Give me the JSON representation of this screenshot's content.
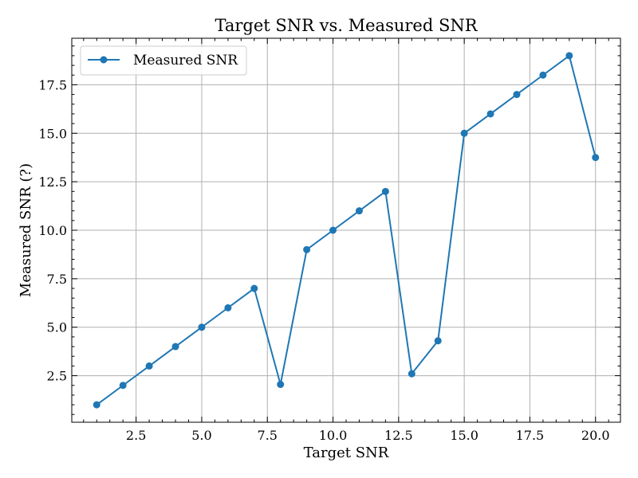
{
  "chart_data": {
    "type": "line",
    "title": "Target SNR vs. Measured SNR",
    "xlabel": "Target SNR",
    "ylabel": "Measured SNR (?)",
    "xlim": [
      0.05,
      20.95
    ],
    "ylim": [
      0.1,
      19.9
    ],
    "xticks": [
      2.5,
      5.0,
      7.5,
      10.0,
      12.5,
      15.0,
      17.5,
      20.0
    ],
    "xtick_labels": [
      "2.5",
      "5.0",
      "7.5",
      "10.0",
      "12.5",
      "15.0",
      "17.5",
      "20.0"
    ],
    "yticks": [
      2.5,
      5.0,
      7.5,
      10.0,
      12.5,
      15.0,
      17.5
    ],
    "ytick_labels": [
      "2.5",
      "5.0",
      "7.5",
      "10.0",
      "12.5",
      "15.0",
      "17.5"
    ],
    "grid": true,
    "legend": "upper-left",
    "series": [
      {
        "name": "Measured SNR",
        "color": "#1f77b4",
        "marker": "circle",
        "x": [
          1,
          2,
          3,
          4,
          5,
          6,
          7,
          8,
          9,
          10,
          11,
          12,
          13,
          14,
          15,
          16,
          17,
          18,
          19,
          20
        ],
        "y": [
          1.0,
          2.0,
          3.0,
          4.0,
          5.0,
          6.0,
          7.0,
          2.05,
          9.0,
          10.0,
          11.0,
          12.0,
          2.6,
          4.3,
          15.0,
          16.0,
          17.0,
          18.0,
          19.0,
          13.75
        ]
      }
    ]
  }
}
